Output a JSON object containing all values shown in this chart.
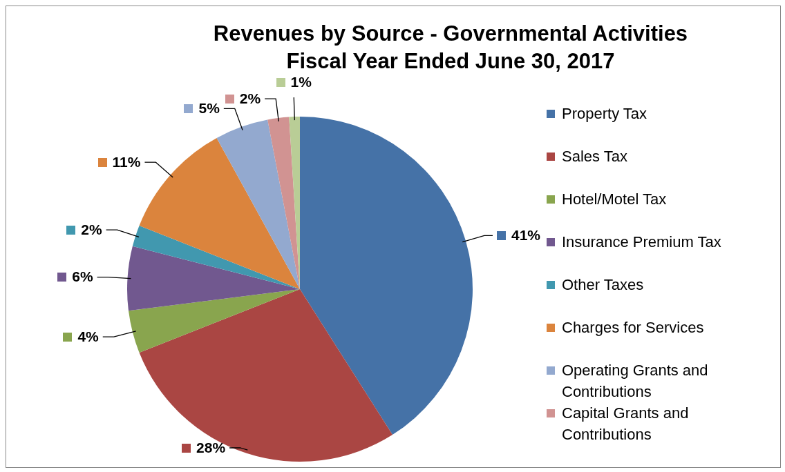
{
  "chart_data": {
    "type": "pie",
    "title": "Revenues by Source - Governmental Activities",
    "subtitle": "Fiscal Year Ended June 30, 2017",
    "categories": [
      "Property Tax",
      "Sales Tax",
      "Hotel/Motel Tax",
      "Insurance Premium Tax",
      "Other Taxes",
      "Charges for Services",
      "Operating Grants and Contributions",
      "Capital Grants and Contributions",
      null
    ],
    "values": [
      41,
      28,
      4,
      6,
      2,
      11,
      5,
      2,
      1
    ],
    "colors": [
      "#4572a7",
      "#aa4643",
      "#89a54e",
      "#71588f",
      "#4198af",
      "#db843d",
      "#93a9cf",
      "#d19392",
      "#b9cd96"
    ],
    "value_labels": [
      "41%",
      "28%",
      "4%",
      "6%",
      "2%",
      "11%",
      "5%",
      "2%",
      "1%"
    ],
    "legend": "right"
  }
}
